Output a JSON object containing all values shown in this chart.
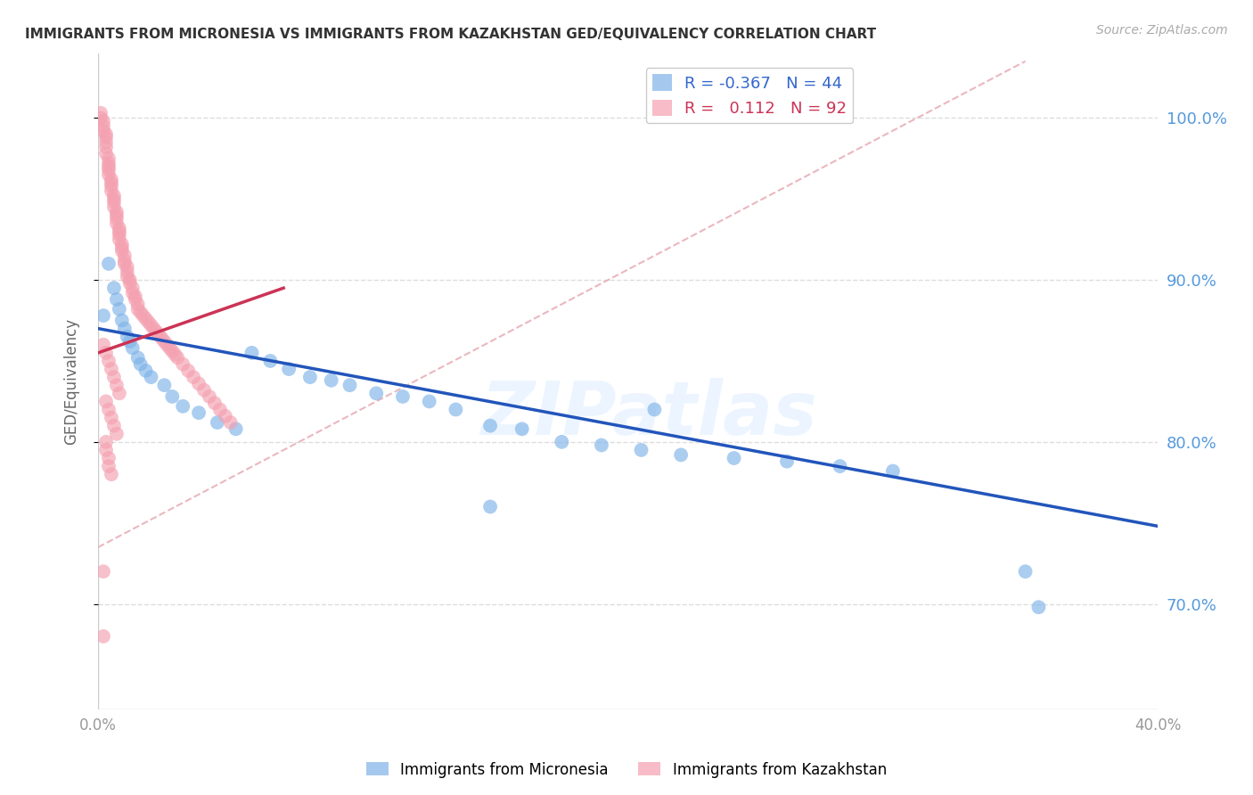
{
  "title": "IMMIGRANTS FROM MICRONESIA VS IMMIGRANTS FROM KAZAKHSTAN GED/EQUIVALENCY CORRELATION CHART",
  "source": "Source: ZipAtlas.com",
  "ylabel": "GED/Equivalency",
  "legend_micronesia": "Immigrants from Micronesia",
  "legend_kazakhstan": "Immigrants from Kazakhstan",
  "R_micronesia": -0.367,
  "N_micronesia": 44,
  "R_kazakhstan": 0.112,
  "N_kazakhstan": 92,
  "micronesia_color": "#7fb3e8",
  "kazakhstan_color": "#f4a0b0",
  "trendline_micronesia_color": "#2255bb",
  "trendline_kazakhstan_color": "#cc3355",
  "ref_line_color": "#e8b0b8",
  "xlim": [
    0.0,
    0.4
  ],
  "ylim": [
    0.635,
    1.04
  ],
  "xticks": [
    0.0,
    0.05,
    0.1,
    0.15,
    0.2,
    0.25,
    0.3,
    0.35,
    0.4
  ],
  "yticks_right": [
    0.7,
    0.8,
    0.9,
    1.0
  ],
  "ytick_labels_right": [
    "70.0%",
    "80.0%",
    "90.0%",
    "100.0%"
  ],
  "grid_color": "#dddddd",
  "background_color": "#ffffff",
  "watermark": "ZIPatlas",
  "micronesia_x": [
    0.002,
    0.004,
    0.006,
    0.007,
    0.008,
    0.009,
    0.01,
    0.011,
    0.012,
    0.013,
    0.015,
    0.016,
    0.018,
    0.02,
    0.025,
    0.028,
    0.032,
    0.038,
    0.045,
    0.052,
    0.058,
    0.065,
    0.072,
    0.08,
    0.088,
    0.095,
    0.105,
    0.115,
    0.125,
    0.135,
    0.148,
    0.16,
    0.175,
    0.19,
    0.205,
    0.22,
    0.24,
    0.26,
    0.28,
    0.3,
    0.148,
    0.21,
    0.35,
    0.355
  ],
  "micronesia_y": [
    0.878,
    0.91,
    0.895,
    0.888,
    0.882,
    0.875,
    0.87,
    0.865,
    0.862,
    0.858,
    0.852,
    0.848,
    0.844,
    0.84,
    0.835,
    0.828,
    0.822,
    0.818,
    0.812,
    0.808,
    0.855,
    0.85,
    0.845,
    0.84,
    0.838,
    0.835,
    0.83,
    0.828,
    0.825,
    0.82,
    0.81,
    0.808,
    0.8,
    0.798,
    0.795,
    0.792,
    0.79,
    0.788,
    0.785,
    0.782,
    0.76,
    0.82,
    0.72,
    0.698
  ],
  "kazakhstan_x": [
    0.001,
    0.001,
    0.002,
    0.002,
    0.002,
    0.003,
    0.003,
    0.003,
    0.003,
    0.003,
    0.004,
    0.004,
    0.004,
    0.004,
    0.004,
    0.005,
    0.005,
    0.005,
    0.005,
    0.006,
    0.006,
    0.006,
    0.006,
    0.007,
    0.007,
    0.007,
    0.007,
    0.008,
    0.008,
    0.008,
    0.008,
    0.009,
    0.009,
    0.009,
    0.01,
    0.01,
    0.01,
    0.011,
    0.011,
    0.011,
    0.012,
    0.012,
    0.013,
    0.013,
    0.014,
    0.014,
    0.015,
    0.015,
    0.016,
    0.017,
    0.018,
    0.019,
    0.02,
    0.021,
    0.022,
    0.023,
    0.024,
    0.025,
    0.026,
    0.027,
    0.028,
    0.029,
    0.03,
    0.032,
    0.034,
    0.036,
    0.038,
    0.04,
    0.042,
    0.044,
    0.046,
    0.048,
    0.05,
    0.002,
    0.003,
    0.004,
    0.005,
    0.006,
    0.007,
    0.008,
    0.003,
    0.004,
    0.005,
    0.006,
    0.007,
    0.003,
    0.003,
    0.004,
    0.004,
    0.005,
    0.002,
    0.002
  ],
  "kazakhstan_y": [
    1.0,
    1.003,
    0.998,
    0.995,
    0.992,
    0.99,
    0.988,
    0.985,
    0.982,
    0.978,
    0.975,
    0.972,
    0.97,
    0.968,
    0.965,
    0.962,
    0.96,
    0.958,
    0.955,
    0.952,
    0.95,
    0.948,
    0.945,
    0.942,
    0.94,
    0.938,
    0.935,
    0.932,
    0.93,
    0.928,
    0.925,
    0.922,
    0.92,
    0.918,
    0.915,
    0.912,
    0.91,
    0.908,
    0.905,
    0.902,
    0.9,
    0.898,
    0.895,
    0.892,
    0.89,
    0.888,
    0.885,
    0.882,
    0.88,
    0.878,
    0.876,
    0.874,
    0.872,
    0.87,
    0.868,
    0.866,
    0.864,
    0.862,
    0.86,
    0.858,
    0.856,
    0.854,
    0.852,
    0.848,
    0.844,
    0.84,
    0.836,
    0.832,
    0.828,
    0.824,
    0.82,
    0.816,
    0.812,
    0.86,
    0.855,
    0.85,
    0.845,
    0.84,
    0.835,
    0.83,
    0.825,
    0.82,
    0.815,
    0.81,
    0.805,
    0.8,
    0.795,
    0.79,
    0.785,
    0.78,
    0.72,
    0.68
  ],
  "trendline_micronesia_x0": 0.0,
  "trendline_micronesia_x1": 0.4,
  "trendline_micronesia_y0": 0.87,
  "trendline_micronesia_y1": 0.748,
  "trendline_kazakhstan_x0": 0.0,
  "trendline_kazakhstan_x1": 0.07,
  "trendline_kazakhstan_y0": 0.855,
  "trendline_kazakhstan_y1": 0.895,
  "ref_line_x0": 0.0,
  "ref_line_y0": 0.735,
  "ref_line_x1": 0.35,
  "ref_line_y1": 1.035
}
